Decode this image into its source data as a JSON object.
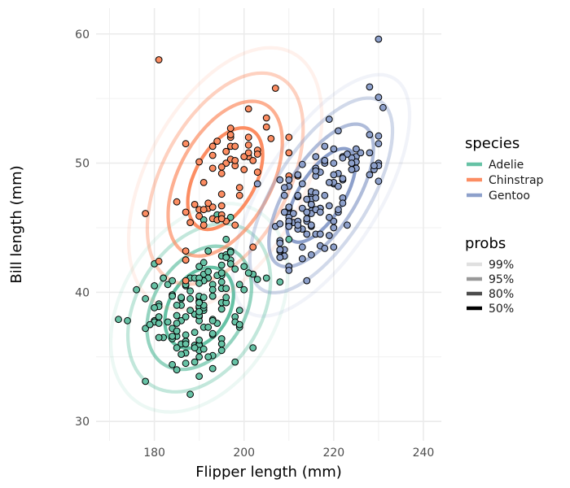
{
  "chart_data": {
    "type": "scatter",
    "xlabel": "Flipper length (mm)",
    "ylabel": "Bill length (mm)",
    "xlim": [
      167,
      244
    ],
    "ylim": [
      28.5,
      62
    ],
    "x_ticks": [
      180,
      200,
      220,
      240
    ],
    "y_ticks": [
      30,
      40,
      50,
      60
    ],
    "grid": true,
    "legend_placement": "right",
    "species_legend": {
      "title": "species",
      "entries": [
        {
          "name": "Adelie",
          "color": "#66c2a5"
        },
        {
          "name": "Chinstrap",
          "color": "#fc8d62"
        },
        {
          "name": "Gentoo",
          "color": "#8da0cb"
        }
      ]
    },
    "probs_legend": {
      "title": "probs",
      "entries": [
        {
          "name": "99%",
          "alpha": 0.12
        },
        {
          "name": "95%",
          "alpha": 0.4
        },
        {
          "name": "80%",
          "alpha": 0.7
        },
        {
          "name": "50%",
          "alpha": 1.0
        }
      ]
    },
    "contours": [
      {
        "species": "Adelie",
        "center": [
          190.0,
          38.8
        ],
        "sx": 6.5,
        "sy": 2.66,
        "rho": 0.33
      },
      {
        "species": "Chinstrap",
        "center": [
          195.8,
          48.8
        ],
        "sx": 7.1,
        "sy": 3.34,
        "rho": 0.47
      },
      {
        "species": "Gentoo",
        "center": [
          217.2,
          47.5
        ],
        "sx": 6.5,
        "sy": 3.08,
        "rho": 0.66
      }
    ],
    "series": [
      {
        "name": "Adelie",
        "x": [
          181,
          186,
          195,
          193,
          190,
          181,
          195,
          193,
          190,
          186,
          180,
          182,
          191,
          198,
          185,
          195,
          197,
          184,
          194,
          174,
          180,
          189,
          185,
          180,
          187,
          183,
          187,
          172,
          180,
          178,
          178,
          188,
          184,
          195,
          196,
          190,
          180,
          181,
          184,
          182,
          195,
          186,
          196,
          185,
          190,
          182,
          179,
          190,
          191,
          186,
          188,
          190,
          200,
          187,
          191,
          186,
          193,
          181,
          194,
          185,
          195,
          185,
          192,
          184,
          192,
          195,
          188,
          190,
          198,
          190,
          190,
          196,
          197,
          190,
          195,
          191,
          184,
          187,
          195,
          189,
          196,
          187,
          193,
          191,
          194,
          190,
          189,
          189,
          190,
          202,
          205,
          185,
          186,
          187,
          208,
          190,
          196,
          178,
          192,
          192,
          203,
          183,
          190,
          193,
          184,
          199,
          190,
          181,
          197,
          198,
          191,
          193,
          197,
          191,
          196,
          188,
          199,
          189,
          189,
          187,
          198,
          176,
          202,
          186,
          199,
          191,
          195,
          191,
          210,
          190,
          197,
          193,
          199,
          187,
          190,
          191,
          200,
          185,
          193,
          193,
          187,
          188,
          190,
          192,
          185,
          190,
          184,
          195,
          193,
          187,
          201
        ],
        "y": [
          39.1,
          39.5,
          40.3,
          36.7,
          39.3,
          38.9,
          39.2,
          34.1,
          42.0,
          37.8,
          37.8,
          41.1,
          38.6,
          34.6,
          36.6,
          38.7,
          42.5,
          34.4,
          46.0,
          37.8,
          37.7,
          35.9,
          38.2,
          38.8,
          35.3,
          40.6,
          40.5,
          37.9,
          40.5,
          39.5,
          37.2,
          39.5,
          40.9,
          36.4,
          39.2,
          38.8,
          42.2,
          37.6,
          39.8,
          36.5,
          40.8,
          36.0,
          44.1,
          37.0,
          39.6,
          41.1,
          37.5,
          36.0,
          42.3,
          39.6,
          40.1,
          35.0,
          42.0,
          34.5,
          41.4,
          39.0,
          40.6,
          36.5,
          37.6,
          35.7,
          41.3,
          37.6,
          41.1,
          36.4,
          41.6,
          35.5,
          41.1,
          35.9,
          41.8,
          33.5,
          39.7,
          39.6,
          45.8,
          35.5,
          42.8,
          40.9,
          37.2,
          36.2,
          42.1,
          34.6,
          42.9,
          36.7,
          35.1,
          37.3,
          41.3,
          36.3,
          36.9,
          38.3,
          38.9,
          35.7,
          41.1,
          34.0,
          39.6,
          36.2,
          40.8,
          38.1,
          40.3,
          33.1,
          43.2,
          35.0,
          41.0,
          37.7,
          37.8,
          37.9,
          39.7,
          38.6,
          38.2,
          38.1,
          43.2,
          38.1,
          45.6,
          39.7,
          42.2,
          39.6,
          42.7,
          38.6,
          37.3,
          35.7,
          41.1,
          36.2,
          37.7,
          40.2,
          41.4,
          35.2,
          40.6,
          38.8,
          41.5,
          39.0,
          44.1,
          38.5,
          43.1,
          36.8,
          37.5,
          38.1,
          41.1,
          35.6,
          40.2,
          37.0,
          39.7,
          40.2,
          40.6,
          32.1,
          40.7,
          37.3,
          39.0,
          39.2,
          36.6,
          36.0,
          37.8,
          36.0,
          41.5
        ]
      },
      {
        "name": "Chinstrap",
        "x": [
          192,
          196,
          193,
          188,
          197,
          198,
          178,
          197,
          195,
          198,
          193,
          194,
          185,
          201,
          190,
          201,
          197,
          181,
          190,
          195,
          181,
          191,
          187,
          193,
          195,
          197,
          200,
          200,
          191,
          205,
          187,
          201,
          187,
          203,
          195,
          199,
          195,
          210,
          192,
          205,
          210,
          187,
          196,
          196,
          196,
          201,
          190,
          212,
          187,
          198,
          199,
          201,
          193,
          203,
          187,
          197,
          191,
          203,
          202,
          194,
          206,
          189,
          195,
          207,
          202,
          193,
          210,
          198
        ],
        "y": [
          46.5,
          50.0,
          51.3,
          45.4,
          52.7,
          45.2,
          46.1,
          51.3,
          46.0,
          51.3,
          46.6,
          51.7,
          47.0,
          52.0,
          45.9,
          50.5,
          50.3,
          58.0,
          46.4,
          49.2,
          42.4,
          48.5,
          43.2,
          50.6,
          46.7,
          52.0,
          50.5,
          49.5,
          46.4,
          52.8,
          40.9,
          54.2,
          42.5,
          51.0,
          49.7,
          47.5,
          47.6,
          52.0,
          46.9,
          53.5,
          49.0,
          46.2,
          50.9,
          45.5,
          50.9,
          50.8,
          50.1,
          49.0,
          51.5,
          49.8,
          48.1,
          51.4,
          45.7,
          50.7,
          42.5,
          52.2,
          45.2,
          49.3,
          50.2,
          45.6,
          51.9,
          46.8,
          45.7,
          55.8,
          43.5,
          49.6,
          50.8,
          50.2
        ]
      },
      {
        "name": "Gentoo",
        "x": [
          211,
          230,
          210,
          218,
          215,
          210,
          211,
          219,
          209,
          215,
          214,
          216,
          214,
          213,
          210,
          217,
          210,
          221,
          209,
          222,
          218,
          215,
          213,
          215,
          215,
          215,
          216,
          215,
          210,
          220,
          222,
          209,
          207,
          230,
          220,
          220,
          213,
          219,
          208,
          208,
          208,
          225,
          210,
          216,
          222,
          217,
          210,
          225,
          213,
          215,
          210,
          220,
          210,
          225,
          217,
          220,
          208,
          220,
          208,
          224,
          208,
          221,
          214,
          231,
          219,
          230,
          214,
          229,
          220,
          223,
          216,
          221,
          221,
          217,
          216,
          230,
          209,
          220,
          215,
          223,
          212,
          221,
          212,
          224,
          212,
          228,
          218,
          218,
          212,
          230,
          218,
          228,
          212,
          224,
          214,
          226,
          216,
          222,
          203,
          225,
          219,
          228,
          215,
          228,
          216,
          215,
          210,
          219,
          208,
          209,
          216,
          229,
          213,
          230,
          217,
          230,
          217,
          222,
          214,
          215,
          222,
          212,
          213
        ],
        "y": [
          46.1,
          50.0,
          48.7,
          50.0,
          47.6,
          46.5,
          45.4,
          46.7,
          43.3,
          46.8,
          40.9,
          49.0,
          45.5,
          48.4,
          45.8,
          49.3,
          42.0,
          49.2,
          46.2,
          48.7,
          50.2,
          45.1,
          46.5,
          46.3,
          42.9,
          46.1,
          44.5,
          47.8,
          48.2,
          50.0,
          47.3,
          42.8,
          45.1,
          59.6,
          49.1,
          48.4,
          42.6,
          44.4,
          44.0,
          48.7,
          42.7,
          49.6,
          45.3,
          49.6,
          50.5,
          43.6,
          45.5,
          50.5,
          44.9,
          45.2,
          46.6,
          48.5,
          45.1,
          50.1,
          46.5,
          45.0,
          43.8,
          45.5,
          43.2,
          50.4,
          45.3,
          46.2,
          45.7,
          54.3,
          45.8,
          49.8,
          46.2,
          49.5,
          43.5,
          50.7,
          47.7,
          46.4,
          48.2,
          46.5,
          46.4,
          48.6,
          47.5,
          51.1,
          45.2,
          45.2,
          49.1,
          52.5,
          47.4,
          50.0,
          44.9,
          50.8,
          43.4,
          51.3,
          47.5,
          52.1,
          47.5,
          52.2,
          45.5,
          49.5,
          44.5,
          50.8,
          49.4,
          46.9,
          48.4,
          51.1,
          48.5,
          55.9,
          47.2,
          49.1,
          47.3,
          46.8,
          41.7,
          53.4,
          43.3,
          48.1,
          50.5,
          49.8,
          43.5,
          51.5,
          46.2,
          55.1,
          44.5,
          48.8,
          47.2,
          46.8,
          50.4,
          45.2,
          49.9
        ]
      }
    ]
  }
}
